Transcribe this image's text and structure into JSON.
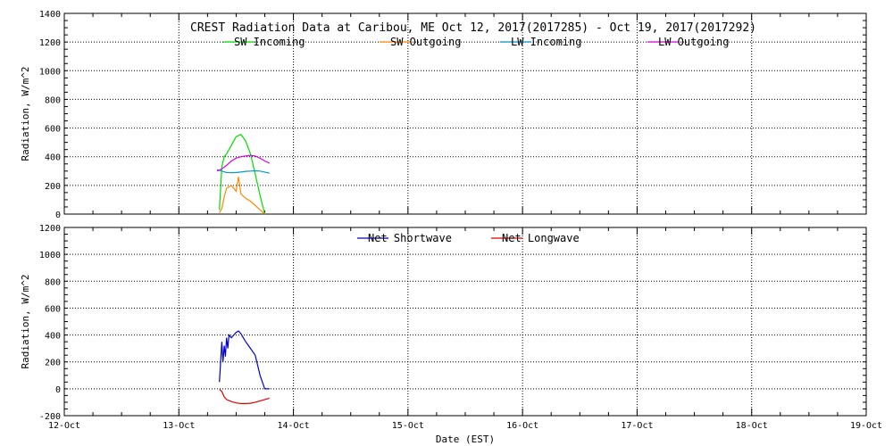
{
  "chart_data": [
    {
      "type": "line",
      "title": "CREST Radiation Data at Caribou, ME   Oct 12, 2017(2017285) - Oct 19, 2017(2017292)",
      "xlabel": "",
      "ylabel": "Radiation, W/m^2",
      "xlim": [
        "2017-10-12",
        "2017-10-19"
      ],
      "ylim": [
        0,
        1400
      ],
      "yticks": [
        0,
        200,
        400,
        600,
        800,
        1000,
        1200,
        1400
      ],
      "grid": true,
      "legend": "top",
      "series": [
        {
          "name": "SW Incoming",
          "color": "#00dd00",
          "x": [
            "2017-10-13 08:30",
            "2017-10-13 09:00",
            "2017-10-13 09:30",
            "2017-10-13 10:00",
            "2017-10-13 11:00",
            "2017-10-13 12:00",
            "2017-10-13 13:00",
            "2017-10-13 14:00",
            "2017-10-13 15:00",
            "2017-10-13 16:00",
            "2017-10-13 17:00",
            "2017-10-13 18:00"
          ],
          "y": [
            30,
            330,
            400,
            420,
            480,
            540,
            555,
            510,
            420,
            280,
            130,
            0
          ]
        },
        {
          "name": "SW Outgoing",
          "color": "#ff8800",
          "x": [
            "2017-10-13 08:30",
            "2017-10-13 09:00",
            "2017-10-13 09:30",
            "2017-10-13 10:00",
            "2017-10-13 11:00",
            "2017-10-13 12:00",
            "2017-10-13 12:30",
            "2017-10-13 13:00",
            "2017-10-13 14:00",
            "2017-10-13 15:00",
            "2017-10-13 16:00",
            "2017-10-13 17:00",
            "2017-10-13 18:00"
          ],
          "y": [
            10,
            40,
            120,
            180,
            200,
            160,
            260,
            140,
            110,
            90,
            60,
            30,
            0
          ]
        },
        {
          "name": "LW Incoming",
          "color": "#0099cc",
          "x": [
            "2017-10-13 08:00",
            "2017-10-13 09:00",
            "2017-10-13 10:00",
            "2017-10-13 11:00",
            "2017-10-13 12:00",
            "2017-10-13 13:00",
            "2017-10-13 14:00",
            "2017-10-13 15:00",
            "2017-10-13 16:00",
            "2017-10-13 17:00",
            "2017-10-13 18:00",
            "2017-10-13 19:00"
          ],
          "y": [
            310,
            300,
            290,
            288,
            290,
            293,
            298,
            300,
            302,
            300,
            293,
            285
          ]
        },
        {
          "name": "LW Outgoing",
          "color": "#dd00dd",
          "x": [
            "2017-10-13 08:00",
            "2017-10-13 09:00",
            "2017-10-13 10:00",
            "2017-10-13 11:00",
            "2017-10-13 12:00",
            "2017-10-13 13:00",
            "2017-10-13 14:00",
            "2017-10-13 15:00",
            "2017-10-13 16:00",
            "2017-10-13 17:00",
            "2017-10-13 18:00",
            "2017-10-13 19:00"
          ],
          "y": [
            300,
            315,
            340,
            370,
            390,
            400,
            405,
            410,
            405,
            390,
            370,
            355
          ]
        }
      ]
    },
    {
      "type": "line",
      "title": "",
      "xlabel": "Date (EST)",
      "ylabel": "Radiation, W/m^2",
      "xlim": [
        "2017-10-12",
        "2017-10-19"
      ],
      "ylim": [
        -200,
        1200
      ],
      "yticks": [
        -200,
        0,
        200,
        400,
        600,
        800,
        1000,
        1200
      ],
      "xticks": [
        "12-Oct",
        "13-Oct",
        "14-Oct",
        "15-Oct",
        "16-Oct",
        "17-Oct",
        "18-Oct",
        "19-Oct"
      ],
      "grid": true,
      "legend": "top",
      "series": [
        {
          "name": "Net Shortwave",
          "color": "#0000cc",
          "x": [
            "2017-10-13 08:30",
            "2017-10-13 09:00",
            "2017-10-13 09:15",
            "2017-10-13 09:30",
            "2017-10-13 09:45",
            "2017-10-13 10:00",
            "2017-10-13 10:15",
            "2017-10-13 10:30",
            "2017-10-13 11:00",
            "2017-10-13 12:00",
            "2017-10-13 12:30",
            "2017-10-13 13:00",
            "2017-10-13 13:30",
            "2017-10-13 14:00",
            "2017-10-13 15:00",
            "2017-10-13 16:00",
            "2017-10-13 17:00",
            "2017-10-13 18:00",
            "2017-10-13 19:00"
          ],
          "y": [
            50,
            350,
            200,
            320,
            240,
            380,
            300,
            400,
            380,
            420,
            430,
            410,
            380,
            350,
            300,
            250,
            100,
            0,
            0
          ]
        },
        {
          "name": "Net Longwave",
          "color": "#dd0000",
          "x": [
            "2017-10-13 08:30",
            "2017-10-13 09:00",
            "2017-10-13 09:30",
            "2017-10-13 10:00",
            "2017-10-13 11:00",
            "2017-10-13 12:00",
            "2017-10-13 13:00",
            "2017-10-13 14:00",
            "2017-10-13 15:00",
            "2017-10-13 16:00",
            "2017-10-13 17:00",
            "2017-10-13 18:00",
            "2017-10-13 19:00"
          ],
          "y": [
            -5,
            -20,
            -60,
            -80,
            -95,
            -105,
            -110,
            -110,
            -108,
            -100,
            -90,
            -80,
            -70
          ]
        }
      ]
    }
  ]
}
